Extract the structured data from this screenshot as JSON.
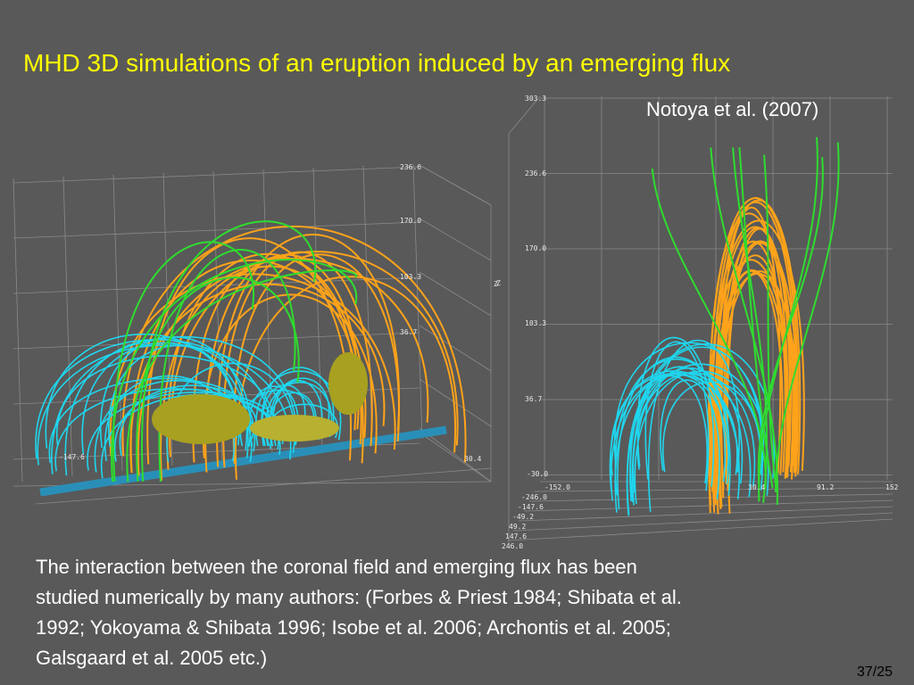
{
  "title": "MHD 3D simulations of an eruption induced by an emerging flux",
  "citation": "Notoya et al. (2007)",
  "body": [
    "The interaction between the coronal field and emerging flux has been",
    "studied numerically by many authors: (Forbes & Priest 1984; Shibata et al.",
    "1992; Yokoyama & Shibata 1996; Isobe et al. 2006; Archontis et al. 2005;",
    "Galsgaard et al. 2005 etc.)"
  ],
  "page_number": "37/25",
  "left_figure": {
    "axis_labels": [
      "236.6",
      "170.0",
      "103.3",
      "36.7",
      "30.4",
      "Z",
      "-147.6"
    ]
  },
  "right_figure": {
    "axis_labels": [
      "303.3",
      "236.6",
      "170.0",
      "103.3",
      "36.7",
      "-30.0",
      "-152.0",
      "30.4",
      "91.2",
      "152",
      "-246.0",
      "-147.6",
      "-49.2",
      "49.2",
      "147.6",
      "246.0",
      "Z"
    ]
  }
}
